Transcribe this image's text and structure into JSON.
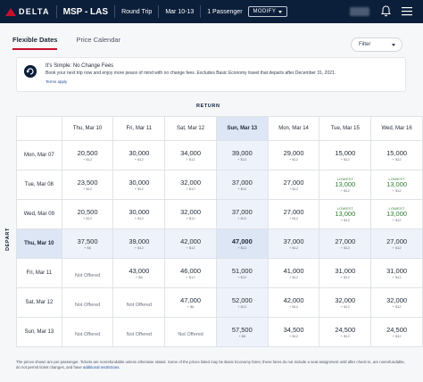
{
  "header": {
    "logo_text": "DELTA",
    "route": "MSP - LAS",
    "trip_type": "Round Trip",
    "dates": "Mar 10-13",
    "passengers": "1 Passenger",
    "modify_label": "MODIFY"
  },
  "tabs": [
    {
      "label": "Flexible Dates",
      "active": true
    },
    {
      "label": "Price Calendar",
      "active": false
    }
  ],
  "filter": {
    "label": "Filter"
  },
  "notice": {
    "title": "It's Simple: No Change Fees",
    "body": "Book your next trip now and enjoy more peace of mind with no change fees. Excludes Basic Economy travel that departs after December 31, 2021.",
    "link": "Terms apply"
  },
  "grid": {
    "return_label": "RETURN",
    "depart_label": "DEPART",
    "columns": [
      "Thu, Mar 10",
      "Fri, Mar 11",
      "Sat, Mar 12",
      "Sun, Mar 13",
      "Mon, Mar 14",
      "Tue, Mar 15",
      "Wed, Mar 16"
    ],
    "rows": [
      {
        "label": "Mon, Mar 07",
        "cells": [
          {
            "price": "20,500",
            "sub": "+ $12"
          },
          {
            "price": "30,000",
            "sub": "+ $12"
          },
          {
            "price": "34,000",
            "sub": "+ $12"
          },
          {
            "price": "39,000",
            "sub": "+ $12"
          },
          {
            "price": "29,000",
            "sub": "+ $12"
          },
          {
            "price": "15,000",
            "sub": "+ $12"
          },
          {
            "price": "15,000",
            "sub": "+ $12"
          }
        ]
      },
      {
        "label": "Tue, Mar 08",
        "cells": [
          {
            "price": "23,500",
            "sub": "+ $12"
          },
          {
            "price": "30,000",
            "sub": "+ $12"
          },
          {
            "price": "32,000",
            "sub": "+ $12"
          },
          {
            "price": "37,000",
            "sub": "+ $12"
          },
          {
            "price": "27,000",
            "sub": "+ $12"
          },
          {
            "price": "13,000",
            "sub": "+ $12",
            "lowest": "LOWEST"
          },
          {
            "price": "13,000",
            "sub": "+ $12",
            "lowest": "LOWEST"
          }
        ]
      },
      {
        "label": "Wed, Mar 09",
        "cells": [
          {
            "price": "20,500",
            "sub": "+ $12"
          },
          {
            "price": "30,000",
            "sub": "+ $12"
          },
          {
            "price": "32,000",
            "sub": "+ $12"
          },
          {
            "price": "37,000",
            "sub": "+ $12"
          },
          {
            "price": "27,000",
            "sub": "+ $12"
          },
          {
            "price": "13,000",
            "sub": "+ $12",
            "lowest": "LOWEST"
          },
          {
            "price": "13,000",
            "sub": "+ $12",
            "lowest": "LOWEST"
          }
        ]
      },
      {
        "label": "Thu, Mar 10",
        "cells": [
          {
            "price": "37,500",
            "sub": "+ $6"
          },
          {
            "price": "39,000",
            "sub": "+ $12"
          },
          {
            "price": "42,000",
            "sub": "+ $12"
          },
          {
            "price": "47,000",
            "sub": "+ $12"
          },
          {
            "price": "37,000",
            "sub": "+ $12"
          },
          {
            "price": "27,000",
            "sub": "+ $12"
          },
          {
            "price": "27,000",
            "sub": "+ $12"
          }
        ]
      },
      {
        "label": "Fri, Mar 11",
        "cells": [
          {
            "na": "Not Offered"
          },
          {
            "price": "43,000",
            "sub": "+ $6"
          },
          {
            "price": "46,000",
            "sub": "+ $12"
          },
          {
            "price": "51,000",
            "sub": "+ $12"
          },
          {
            "price": "41,000",
            "sub": "+ $12"
          },
          {
            "price": "31,000",
            "sub": "+ $12"
          },
          {
            "price": "31,000",
            "sub": "+ $12"
          }
        ]
      },
      {
        "label": "Sat, Mar 12",
        "cells": [
          {
            "na": "Not Offered"
          },
          {
            "na": "Not Offered"
          },
          {
            "price": "47,000",
            "sub": "+ $6"
          },
          {
            "price": "52,000",
            "sub": "+ $12"
          },
          {
            "price": "42,000",
            "sub": "+ $12"
          },
          {
            "price": "32,000",
            "sub": "+ $12"
          },
          {
            "price": "32,000",
            "sub": "+ $12"
          }
        ]
      },
      {
        "label": "Sun, Mar 13",
        "cells": [
          {
            "na": "Not Offered"
          },
          {
            "na": "Not Offered"
          },
          {
            "na": "Not Offered"
          },
          {
            "price": "57,500",
            "sub": "+ $6"
          },
          {
            "price": "34,500",
            "sub": "+ $12"
          },
          {
            "price": "24,500",
            "sub": "+ $12"
          },
          {
            "price": "24,500",
            "sub": "+ $12"
          }
        ]
      }
    ]
  },
  "footer": {
    "text": "The prices shown are per passenger. Tickets are nonrefundable unless otherwise stated. Some of the prices listed may be Basic Economy fares; these fares do not include a seat assignment until after check-in, are nonrefundable, do not permit ticket changes, and have",
    "link": "additional restrictions."
  },
  "colors": {
    "navy": "#0b1f3a",
    "red": "#c8102e",
    "green": "#2e7d32",
    "highlight": "#dde6f4"
  }
}
